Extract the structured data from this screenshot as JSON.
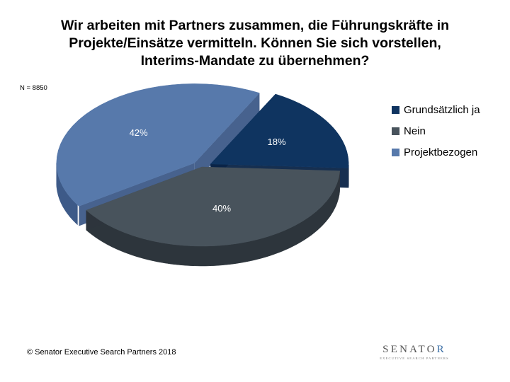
{
  "title_lines": [
    "Wir arbeiten mit Partners zusammen, die Führungskräfte in",
    "Projekte/Einsätze vermitteln. Können Sie sich vorstellen,",
    "Interims-Mandate zu übernehmen?"
  ],
  "sample_size": "N = 8850",
  "copyright": "© Senator Executive Search Partners 2018",
  "logo": {
    "text": "SENATO",
    "accent": "R",
    "tagline": "EXECUTIVE SEARCH PARTNERS"
  },
  "chart_data": {
    "type": "pie",
    "title": "Wir arbeiten mit Partners zusammen, die Führungskräfte in Projekte/Einsätze vermitteln. Können Sie sich vorstellen, Interims-Mandate zu übernehmen?",
    "categories": [
      "Grundsätzlich ja",
      "Nein",
      "Projektbezogen"
    ],
    "values": [
      18,
      40,
      42
    ],
    "labels": [
      "18%",
      "40%",
      "42%"
    ],
    "colors": [
      "#0f3460",
      "#48535c",
      "#5779ab"
    ],
    "side_colors": [
      "#0a2447",
      "#2d353c",
      "#3d5a88"
    ],
    "exploded": [
      true,
      false,
      true
    ],
    "legend_position": "right"
  }
}
